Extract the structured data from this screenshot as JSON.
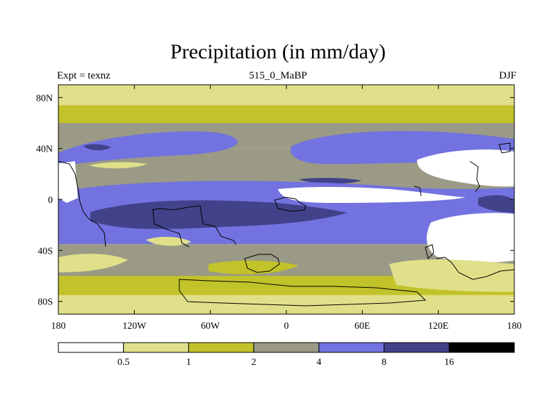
{
  "chart_data": {
    "type": "heatmap",
    "title": "Precipitation (in mm/day)",
    "subtitle_left": "Expt = texnz",
    "subtitle_center": "515_0_MaBP",
    "subtitle_right": "DJF",
    "x_ticks": [
      "180",
      "120W",
      "60W",
      "0",
      "60E",
      "120E",
      "180"
    ],
    "x_tick_values": [
      -180,
      -120,
      -60,
      0,
      60,
      120,
      180
    ],
    "y_ticks": [
      "80N",
      "40N",
      "0",
      "40S",
      "80S"
    ],
    "y_tick_values": [
      80,
      40,
      0,
      -40,
      -80
    ],
    "xlim": [
      -180,
      180
    ],
    "ylim": [
      -90,
      90
    ],
    "colorbar": {
      "levels": [
        "0.5",
        "1",
        "2",
        "4",
        "8",
        "16"
      ],
      "level_values": [
        0.5,
        1,
        2,
        4,
        8,
        16
      ],
      "colors": [
        "#ffffff",
        "#e0e08a",
        "#c2c22a",
        "#9a9a86",
        "#7272e0",
        "#42428a",
        "#000000"
      ]
    },
    "bands": [
      {
        "lat": [
          74,
          90
        ],
        "value": 0.7
      },
      {
        "lat": [
          60,
          74
        ],
        "value": 1.5
      },
      {
        "lat": [
          40,
          60
        ],
        "value": 3.0
      },
      {
        "lat": [
          15,
          40
        ],
        "value": 2.5
      },
      {
        "lat": [
          -5,
          15
        ],
        "value": 3.0
      },
      {
        "lat": [
          -35,
          -5
        ],
        "value": 5.0
      },
      {
        "lat": [
          -60,
          -35
        ],
        "value": 3.0
      },
      {
        "lat": [
          -75,
          -60
        ],
        "value": 1.5
      },
      {
        "lat": [
          -90,
          -75
        ],
        "value": 0.7
      }
    ]
  }
}
